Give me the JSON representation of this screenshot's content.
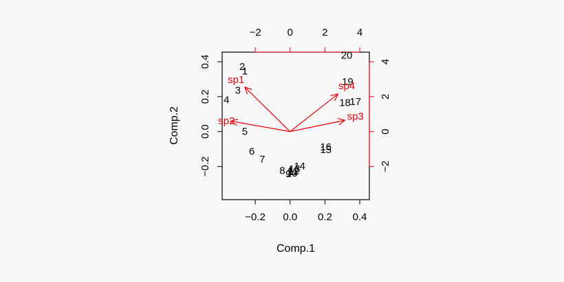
{
  "chart_data": {
    "type": "scatter",
    "subtype": "biplot",
    "title": "",
    "xlabel": "Comp.1",
    "ylabel": "Comp.2",
    "xlim": [
      -0.39,
      0.455
    ],
    "ylim": [
      -0.39,
      0.455
    ],
    "x_ticks": [
      "−0.2",
      "0.0",
      "0.2",
      "0.4"
    ],
    "x_tick_values": [
      -0.2,
      0.0,
      0.2,
      0.4
    ],
    "y_ticks": [
      "−0.2",
      "0.0",
      "0.2",
      "0.4"
    ],
    "y_tick_values": [
      -0.2,
      0.0,
      0.2,
      0.4
    ],
    "top_axis": {
      "ticks": [
        "−2",
        "0",
        "2",
        "4"
      ],
      "values": [
        -2,
        0,
        2,
        4
      ],
      "lim": [
        -3.9,
        4.55
      ]
    },
    "right_axis": {
      "ticks": [
        "−2",
        "0",
        "2",
        "4"
      ],
      "values": [
        -2,
        0,
        2,
        4
      ],
      "lim": [
        -3.9,
        4.55
      ],
      "color": "#e8000b"
    },
    "points": [
      {
        "label": "1",
        "x": -0.26,
        "y": 0.345
      },
      {
        "label": "2",
        "x": -0.275,
        "y": 0.37
      },
      {
        "label": "3",
        "x": -0.3,
        "y": 0.235
      },
      {
        "label": "4",
        "x": -0.365,
        "y": 0.18
      },
      {
        "label": "5",
        "x": -0.26,
        "y": 0.0
      },
      {
        "label": "6",
        "x": -0.22,
        "y": -0.115
      },
      {
        "label": "7",
        "x": -0.16,
        "y": -0.16
      },
      {
        "label": "8",
        "x": -0.045,
        "y": -0.225
      },
      {
        "label": "9",
        "x": -0.01,
        "y": -0.245
      },
      {
        "label": "10",
        "x": 0.01,
        "y": -0.24
      },
      {
        "label": "11",
        "x": 0.015,
        "y": -0.23
      },
      {
        "label": "12",
        "x": 0.02,
        "y": -0.225
      },
      {
        "label": "13",
        "x": 0.025,
        "y": -0.215
      },
      {
        "label": "14",
        "x": 0.055,
        "y": -0.2
      },
      {
        "label": "15",
        "x": 0.205,
        "y": -0.105
      },
      {
        "label": "16",
        "x": 0.205,
        "y": -0.09
      },
      {
        "label": "17",
        "x": 0.375,
        "y": 0.17
      },
      {
        "label": "18",
        "x": 0.315,
        "y": 0.165
      },
      {
        "label": "19",
        "x": 0.33,
        "y": 0.285
      },
      {
        "label": "20",
        "x": 0.325,
        "y": 0.435
      }
    ],
    "loadings": [
      {
        "name": "sp1",
        "x": -2.6,
        "y": 2.55
      },
      {
        "name": "sp2",
        "x": -3.4,
        "y": 0.6
      },
      {
        "name": "sp3",
        "x": 3.15,
        "y": 0.65
      },
      {
        "name": "sp4",
        "x": 2.75,
        "y": 2.15
      }
    ],
    "loading_label_positions": [
      {
        "name": "sp1",
        "x": -3.1,
        "y": 2.95
      },
      {
        "name": "sp2",
        "x": -3.65,
        "y": 0.6
      },
      {
        "name": "sp3",
        "x": 3.75,
        "y": 0.85
      },
      {
        "name": "sp4",
        "x": 3.25,
        "y": 2.6
      }
    ],
    "point_color": "#000000",
    "arrow_color": "#e8000b",
    "grid": false,
    "legend": "none"
  }
}
